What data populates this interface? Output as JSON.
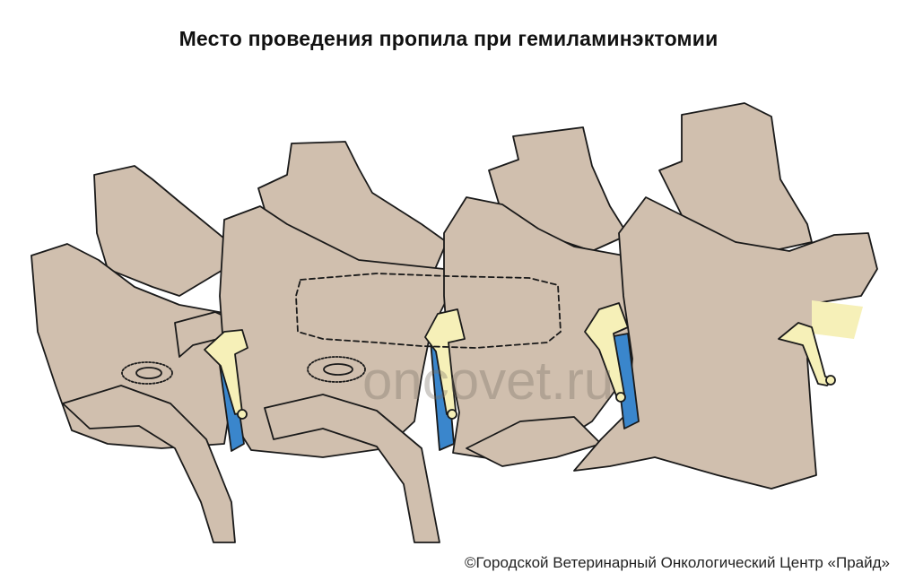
{
  "title": "Место проведения пропила при гемиламинэктомии",
  "watermark": "oncovet.ru",
  "credit": "©Городской Ветеринарный Онкологический Центр «Прайд»",
  "colors": {
    "bone": "#d0bfae",
    "outline": "#1a1a1a",
    "nerve": "#f6f0b8",
    "vessel": "#3a86cc"
  }
}
